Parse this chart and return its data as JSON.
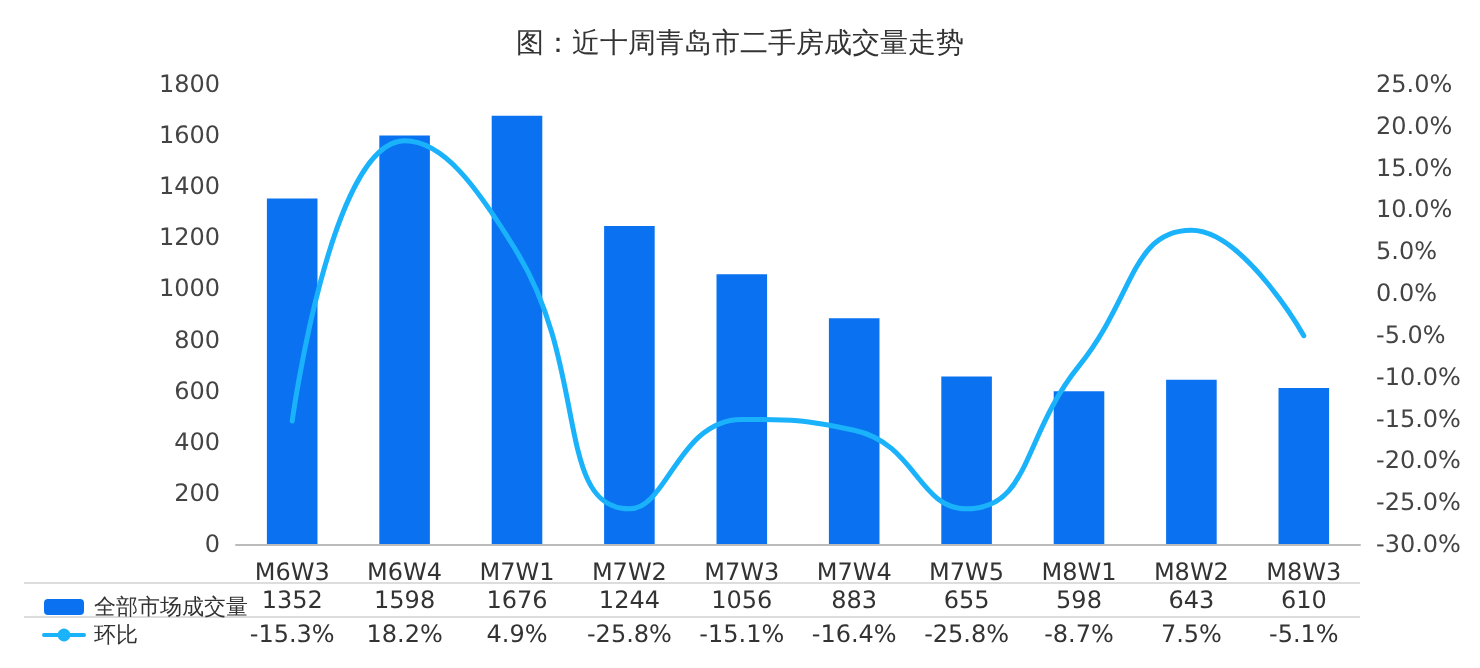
{
  "chart_data": {
    "type": "bar",
    "title": "图：近十周青岛市二手房成交量走势",
    "categories": [
      "M6W3",
      "M6W4",
      "M7W1",
      "M7W2",
      "M7W3",
      "M7W4",
      "M7W5",
      "M8W1",
      "M8W2",
      "M8W3"
    ],
    "series": [
      {
        "name": "全部市场成交量",
        "color": "#0a72f0",
        "values": [
          1352,
          1598,
          1676,
          1244,
          1056,
          883,
          655,
          598,
          643,
          610
        ],
        "value_labels": [
          "1352",
          "1598",
          "1676",
          "1244",
          "1056",
          "883",
          "655",
          "598",
          "643",
          "610"
        ]
      },
      {
        "name": "环比",
        "type": "line",
        "axis": "y2",
        "color": "#1ab2fa",
        "values": [
          -15.3,
          18.2,
          4.9,
          -25.8,
          -15.1,
          -16.4,
          -25.8,
          -8.7,
          7.5,
          -5.1
        ],
        "value_labels": [
          "-15.3%",
          "18.2%",
          "4.9%",
          "-25.8%",
          "-15.1%",
          "-16.4%",
          "-25.8%",
          "-8.7%",
          "7.5%",
          "-5.1%"
        ]
      }
    ],
    "ylim": [
      0,
      1800
    ],
    "yticks": [
      0,
      200,
      400,
      600,
      800,
      1000,
      1200,
      1400,
      1600,
      1800
    ],
    "y2lim": [
      -30,
      25
    ],
    "y2ticks": [
      {
        "value": -30,
        "label": "-30.0%"
      },
      {
        "value": -25,
        "label": "-25.0%"
      },
      {
        "value": -20,
        "label": "-20.0%"
      },
      {
        "value": -15,
        "label": "-15.0%"
      },
      {
        "value": -10,
        "label": "-10.0%"
      },
      {
        "value": -5,
        "label": "-5.0%"
      },
      {
        "value": 0,
        "label": "0.0%"
      },
      {
        "value": 5,
        "label": "5.0%"
      },
      {
        "value": 10,
        "label": "10.0%"
      },
      {
        "value": 15,
        "label": "15.0%"
      },
      {
        "value": 20,
        "label": "20.0%"
      },
      {
        "value": 25,
        "label": "25.0%"
      }
    ],
    "grid": false,
    "legend": "bottom left",
    "marker": "none",
    "line_style": "solid"
  }
}
